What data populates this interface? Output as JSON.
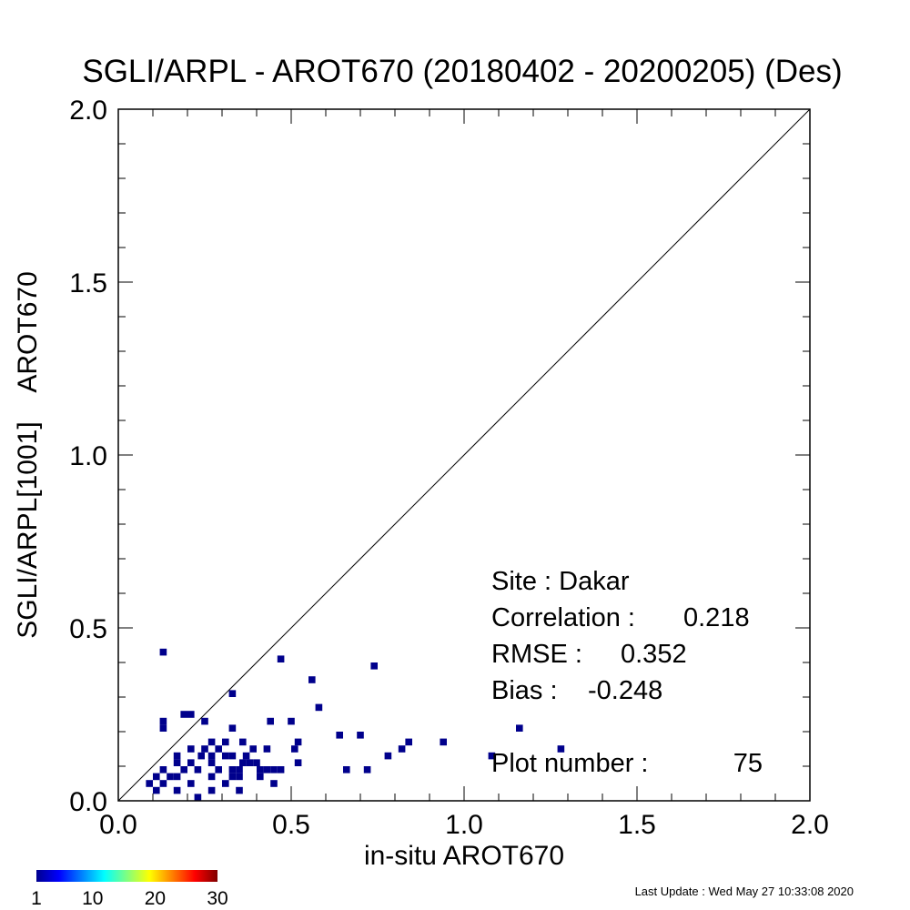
{
  "chart_data": {
    "type": "scatter",
    "title": "SGLI/ARPL - AROT670 (20180402 - 20200205) (Des)",
    "xlabel": "in-situ AROT670",
    "ylabel": "SGLI/ARPL[1001]    AROT670",
    "xlim": [
      0.0,
      2.0
    ],
    "ylim": [
      0.0,
      2.0
    ],
    "x_ticks": [
      "0.0",
      "0.5",
      "1.0",
      "1.5",
      "2.0"
    ],
    "y_ticks": [
      "0.0",
      "0.5",
      "1.0",
      "1.5",
      "2.0"
    ],
    "reference_line": "1:1",
    "marker_color": "#00008c",
    "points": [
      [
        0.13,
        0.43
      ],
      [
        0.47,
        0.41
      ],
      [
        0.74,
        0.39
      ],
      [
        0.56,
        0.35
      ],
      [
        0.33,
        0.31
      ],
      [
        0.58,
        0.27
      ],
      [
        0.19,
        0.25
      ],
      [
        0.21,
        0.25
      ],
      [
        0.13,
        0.23
      ],
      [
        0.13,
        0.21
      ],
      [
        0.25,
        0.23
      ],
      [
        0.44,
        0.23
      ],
      [
        0.5,
        0.23
      ],
      [
        0.33,
        0.21
      ],
      [
        1.16,
        0.21
      ],
      [
        0.64,
        0.19
      ],
      [
        0.7,
        0.19
      ],
      [
        0.52,
        0.17
      ],
      [
        0.84,
        0.17
      ],
      [
        0.94,
        0.17
      ],
      [
        0.27,
        0.17
      ],
      [
        0.31,
        0.17
      ],
      [
        0.36,
        0.17
      ],
      [
        0.21,
        0.15
      ],
      [
        0.25,
        0.15
      ],
      [
        0.29,
        0.15
      ],
      [
        0.39,
        0.15
      ],
      [
        0.43,
        0.15
      ],
      [
        0.51,
        0.15
      ],
      [
        0.82,
        0.15
      ],
      [
        1.28,
        0.15
      ],
      [
        0.17,
        0.13
      ],
      [
        0.24,
        0.13
      ],
      [
        0.27,
        0.13
      ],
      [
        0.31,
        0.13
      ],
      [
        0.33,
        0.13
      ],
      [
        0.37,
        0.13
      ],
      [
        0.78,
        0.13
      ],
      [
        1.08,
        0.13
      ],
      [
        0.17,
        0.11
      ],
      [
        0.21,
        0.11
      ],
      [
        0.27,
        0.11
      ],
      [
        0.36,
        0.11
      ],
      [
        0.38,
        0.11
      ],
      [
        0.4,
        0.11
      ],
      [
        0.52,
        0.11
      ],
      [
        0.13,
        0.09
      ],
      [
        0.19,
        0.09
      ],
      [
        0.23,
        0.09
      ],
      [
        0.29,
        0.09
      ],
      [
        0.33,
        0.09
      ],
      [
        0.35,
        0.09
      ],
      [
        0.41,
        0.09
      ],
      [
        0.43,
        0.09
      ],
      [
        0.45,
        0.09
      ],
      [
        0.47,
        0.09
      ],
      [
        0.66,
        0.09
      ],
      [
        0.72,
        0.09
      ],
      [
        0.11,
        0.07
      ],
      [
        0.17,
        0.07
      ],
      [
        0.27,
        0.07
      ],
      [
        0.33,
        0.07
      ],
      [
        0.35,
        0.07
      ],
      [
        0.41,
        0.07
      ],
      [
        0.09,
        0.05
      ],
      [
        0.13,
        0.05
      ],
      [
        0.21,
        0.05
      ],
      [
        0.31,
        0.05
      ],
      [
        0.45,
        0.05
      ],
      [
        0.11,
        0.03
      ],
      [
        0.17,
        0.03
      ],
      [
        0.27,
        0.03
      ],
      [
        0.35,
        0.03
      ],
      [
        0.23,
        0.01
      ],
      [
        0.15,
        0.07
      ]
    ],
    "stats": {
      "site_label": "Site : Dakar",
      "correlation_label": "Correlation :",
      "correlation_value": "0.218",
      "rmse_label": "RMSE :",
      "rmse_value": "0.352",
      "bias_label": "Bias :",
      "bias_value": "-0.248",
      "plot_number_label": "Plot number :",
      "plot_number_value": "75"
    },
    "colorbar": {
      "ticks": [
        "1",
        "10",
        "20",
        "30"
      ],
      "colors": [
        "#00008f",
        "#0000ff",
        "#0080ff",
        "#00ffff",
        "#80ff80",
        "#ffff00",
        "#ff8000",
        "#ff0000",
        "#800000"
      ]
    }
  },
  "footer": {
    "last_update": "Last Update : Wed May 27 10:33:08 2020"
  }
}
